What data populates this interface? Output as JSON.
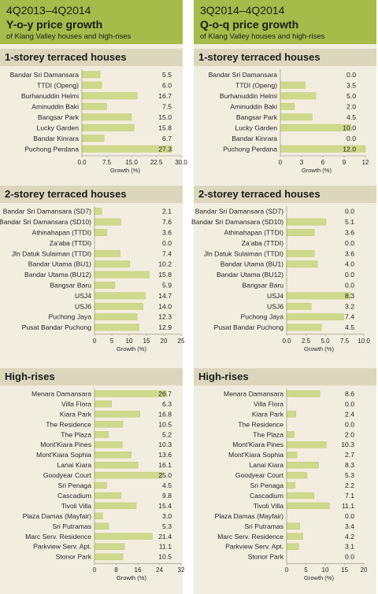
{
  "colors": {
    "header": "#a6bb4a",
    "bar": "#cfd98b",
    "bar_stroke": "#b8c56a",
    "panel": "#f2eedf",
    "section": "#dcd6bd"
  },
  "left": {
    "period": "4Q2013–4Q2014",
    "title": "Y-o-y price growth",
    "subtitle": "of Klang Valley houses and high-rises"
  },
  "right": {
    "period": "3Q2014–4Q2014",
    "title": "Q-o-q price growth",
    "subtitle": "of Klang Valley houses and high-rises"
  },
  "chart_data": [
    {
      "type": "bar",
      "orientation": "horizontal",
      "id": "yoy-1storey",
      "title": "1-storey terraced houses",
      "xlabel": "Growth (%)",
      "xlim": [
        0,
        30
      ],
      "xticks": [
        "0.0",
        "7.5",
        "15.0",
        "22.5",
        "30.0"
      ],
      "categories": [
        "Bandar Sri Damansara",
        "TTDI (Openg)",
        "Burhanuddin Helmi",
        "Aminuddin Baki",
        "Bangsar Park",
        "Lucky Garden",
        "Bandar Kinrara",
        "Puchong Perdana"
      ],
      "values": [
        5.5,
        6.0,
        16.7,
        7.5,
        15.0,
        15.8,
        6.7,
        27.3
      ],
      "labels": [
        "5.5",
        "6.0",
        "16.7",
        "7.5",
        "15.0",
        "15.8",
        "6.7",
        "27.3"
      ]
    },
    {
      "type": "bar",
      "orientation": "horizontal",
      "id": "yoy-2storey",
      "title": "2-storey terraced houses",
      "xlabel": "Growth (%)",
      "xlim": [
        0,
        25
      ],
      "xticks": [
        "0",
        "5",
        "10",
        "15",
        "20",
        "25"
      ],
      "categories": [
        "Bandar Sri Damansara (SD7)",
        "Bandar Sri Damansara (SD10)",
        "Athinahapan (TTDI)",
        "Za'aba (TTDI)",
        "Jln Datuk Sulaiman (TTDI)",
        "Bandar Utama (BU1)",
        "Bandar Utama (BU12)",
        "Bangsar Baru",
        "USJ4",
        "USJ6",
        "Puchong Jaya",
        "Pusat Bandar Puchong"
      ],
      "values": [
        2.1,
        7.6,
        3.6,
        0.0,
        7.4,
        10.2,
        15.8,
        5.9,
        14.7,
        14.0,
        12.3,
        12.9
      ],
      "labels": [
        "2.1",
        "7.6",
        "3.6",
        "0.0",
        "7.4",
        "10.2",
        "15.8",
        "5.9",
        "14.7",
        "14.0",
        "12.3",
        "12.9"
      ]
    },
    {
      "type": "bar",
      "orientation": "horizontal",
      "id": "yoy-highrises",
      "title": "High-rises",
      "xlabel": "Growth (%)",
      "xlim": [
        0,
        32
      ],
      "xticks": [
        "0",
        "8",
        "16",
        "24",
        "32"
      ],
      "categories": [
        "Menara Damansara",
        "Villa Flora",
        "Kiara Park",
        "The Residence",
        "The Plaza",
        "Mont'Kiara Pines",
        "Mont'Kiara Sophia",
        "Lanai Kiara",
        "Goodyear Court",
        "Sri Penaga",
        "Cascadium",
        "Tivoli Villa",
        "Plaza Damas (Mayfair)",
        "Sri Putramas",
        "Marc Serv. Residence",
        "Parkview Serv. Apt.",
        "Stonor Park"
      ],
      "values": [
        26.7,
        6.3,
        16.8,
        10.5,
        5.2,
        10.3,
        13.6,
        16.1,
        25.0,
        4.5,
        9.8,
        15.4,
        3.0,
        5.3,
        21.4,
        11.1,
        10.5
      ],
      "labels": [
        "26.7",
        "6.3",
        "16.8",
        "10.5",
        "5.2",
        "10.3",
        "13.6",
        "16.1",
        "25.0",
        "4.5",
        "9.8",
        "15.4",
        "3.0",
        "5.3",
        "21.4",
        "11.1",
        "10.5"
      ]
    },
    {
      "type": "bar",
      "orientation": "horizontal",
      "id": "qoq-1storey",
      "title": "1-storey terraced houses",
      "xlabel": "Growth (%)",
      "xlim": [
        0,
        12
      ],
      "xticks": [
        "0",
        "3",
        "6",
        "9",
        "12"
      ],
      "categories": [
        "Bandar Sri Damansara",
        "TTDI (Openg)",
        "Burhanuddin Helmi",
        "Aminuddin Baki",
        "Bangsar Park",
        "Lucky Garden",
        "Bandar Kinrara",
        "Puchong Perdana"
      ],
      "values": [
        0.0,
        3.5,
        5.0,
        2.0,
        4.5,
        10.0,
        0.0,
        12.0
      ],
      "labels": [
        "0.0",
        "3.5",
        "5.0",
        "2.0",
        "4.5",
        "10.0",
        "0.0",
        "12.0"
      ]
    },
    {
      "type": "bar",
      "orientation": "horizontal",
      "id": "qoq-2storey",
      "title": "2-storey terraced houses",
      "xlabel": "Growth (%)",
      "xlim": [
        0,
        10
      ],
      "xticks": [
        "0.0",
        "2.5",
        "5.0",
        "7.5",
        "10.0"
      ],
      "categories": [
        "Bandar Sri Damansara (SD7)",
        "Bandar Sri Damansara (SD10)",
        "Athinahapan (TTDI)",
        "Za'aba (TTDI)",
        "Jln Datuk Sulaiman (TTDI)",
        "Bandar Utama (BU1)",
        "Bandar Utama (BU12)",
        "Bangsar Baru",
        "USJ4",
        "USJ6",
        "Puchong Jaya",
        "Pusat Bandar Puchong"
      ],
      "values": [
        0.0,
        5.1,
        3.6,
        0.0,
        3.6,
        4.0,
        0.0,
        0.0,
        8.3,
        3.2,
        7.4,
        4.5
      ],
      "labels": [
        "0.0",
        "5.1",
        "3.6",
        "0.0",
        "3.6",
        "4.0",
        "0.0",
        "0.0",
        "8.3",
        "3.2",
        "7.4",
        "4.5"
      ]
    },
    {
      "type": "bar",
      "orientation": "horizontal",
      "id": "qoq-highrises",
      "title": "High-rises",
      "xlabel": "Growth (%)",
      "xlim": [
        0,
        20
      ],
      "xticks": [
        "0",
        "5",
        "10",
        "15",
        "20"
      ],
      "categories": [
        "Menara Damansara",
        "Villa Flora",
        "Kiara Park",
        "The Residence",
        "The Plaza",
        "Mont'Kiara Pines",
        "Mont'Kiara Sophia",
        "Lanai Kiara",
        "Goodyear Court",
        "Sri Penaga",
        "Cascadium",
        "Tivoli Villa",
        "Plaza Damas (Mayfair)",
        "Sri Putramas",
        "Marc Serv. Residence",
        "Parkview Serv. Apt.",
        "Stonor Park"
      ],
      "values": [
        8.6,
        0.0,
        2.4,
        0.0,
        2.0,
        10.3,
        2.7,
        8.3,
        5.3,
        2.2,
        7.1,
        11.1,
        0.0,
        3.4,
        4.2,
        3.1,
        0.0
      ],
      "labels": [
        "8.6",
        "0.0",
        "2.4",
        "0.0",
        "2.0",
        "10.3",
        "2.7",
        "8.3",
        "5.3",
        "2.2",
        "7.1",
        "11.1",
        "0.0",
        "3.4",
        "4.2",
        "3.1",
        "0.0"
      ]
    }
  ]
}
